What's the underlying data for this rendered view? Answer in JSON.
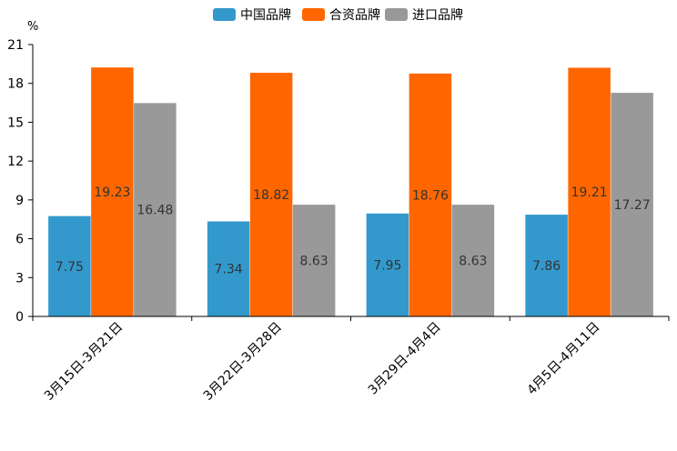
{
  "chart_data": {
    "type": "bar",
    "title": "",
    "xlabel": "",
    "ylabel": "%",
    "ylim": [
      0,
      21
    ],
    "yticks": [
      0,
      3,
      6,
      9,
      12,
      15,
      18,
      21
    ],
    "categories": [
      "3月15日-3月21日",
      "3月22日-3月28日",
      "3月29日-4月4日",
      "4月5日-4月11日"
    ],
    "series": [
      {
        "name": "中国品牌",
        "color": "#3399cc",
        "values": [
          7.75,
          7.34,
          7.95,
          7.86
        ]
      },
      {
        "name": "合资品牌",
        "color": "#ff6600",
        "values": [
          19.23,
          18.82,
          18.76,
          19.21
        ]
      },
      {
        "name": "进口品牌",
        "color": "#999999",
        "values": [
          16.48,
          8.63,
          8.63,
          17.27
        ]
      }
    ],
    "legend_position": "top-center",
    "grid": false
  }
}
